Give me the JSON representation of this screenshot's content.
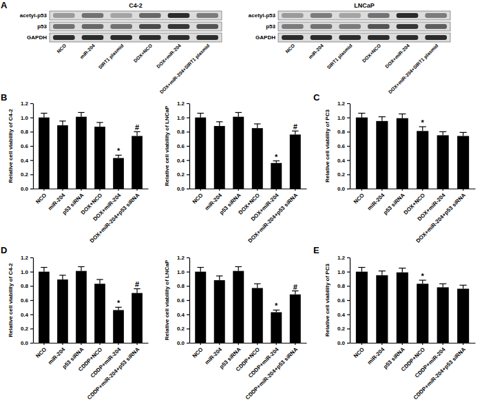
{
  "panel_labels": [
    "A",
    "B",
    "C",
    "D",
    "E"
  ],
  "blots": [
    {
      "title": "C4-2",
      "row_labels": [
        "acetyl-p53",
        "p53",
        "GAPDH"
      ],
      "lanes": [
        "NCO",
        "miR-204",
        "SIRT1 plasmid",
        "DOX+NCO",
        "DOX+miR-204",
        "DOX+miR-204+SIRT1 plasmid"
      ],
      "intensity": [
        [
          0.3,
          0.5,
          0.25,
          0.55,
          0.85,
          0.45
        ],
        [
          0.5,
          0.55,
          0.5,
          0.7,
          0.8,
          0.65
        ],
        [
          0.85,
          0.85,
          0.85,
          0.85,
          0.85,
          0.85
        ]
      ]
    },
    {
      "title": "LNCaP",
      "row_labels": [
        "acetyl-p53",
        "p53",
        "GAPDH"
      ],
      "lanes": [
        "NCO",
        "miR-204",
        "SIRT1 plasmid",
        "DOX+NCO",
        "DOX+miR-204",
        "DOX+miR-204+SIRT1 plasmid"
      ],
      "intensity": [
        [
          0.3,
          0.45,
          0.25,
          0.5,
          0.85,
          0.45
        ],
        [
          0.45,
          0.5,
          0.45,
          0.65,
          0.8,
          0.6
        ],
        [
          0.85,
          0.85,
          0.85,
          0.85,
          0.85,
          0.85
        ]
      ]
    }
  ],
  "chart_data": [
    {
      "type": "bar",
      "y_label": "Relative cell viability of C4-2",
      "categories": [
        "NCO",
        "miR-204",
        "p53 siRNA",
        "DOX+NCO",
        "DOX+miR-204",
        "DOX+miR-204+p53 siRNA"
      ],
      "values": [
        1.0,
        0.89,
        1.01,
        0.87,
        0.43,
        0.74
      ],
      "errors": [
        0.06,
        0.06,
        0.06,
        0.06,
        0.04,
        0.06
      ],
      "annotations": [
        null,
        null,
        null,
        null,
        "*",
        "#"
      ],
      "color": "#000000",
      "ylim": [
        0,
        1.2
      ],
      "yticks": [
        {
          "value": 0,
          "label": "0.0"
        },
        {
          "value": 0.2,
          "label": "0.2"
        },
        {
          "value": 0.4,
          "label": "0.4"
        },
        {
          "value": 0.6,
          "label": "0.6"
        },
        {
          "value": 0.8,
          "label": "0.8"
        },
        {
          "value": 1,
          "label": "1.0"
        },
        {
          "value": 1.2,
          "label": "1.2"
        }
      ]
    },
    {
      "type": "bar",
      "y_label": "Relative cell viability of LNCaP",
      "categories": [
        "NCO",
        "miR-204",
        "p53 siRNA",
        "DOX+NCO",
        "DOX+miR-204",
        "DOX+miR-204+p53 siRNA"
      ],
      "values": [
        1.0,
        0.88,
        1.01,
        0.85,
        0.36,
        0.76
      ],
      "errors": [
        0.06,
        0.06,
        0.06,
        0.06,
        0.03,
        0.05
      ],
      "annotations": [
        null,
        null,
        null,
        null,
        "*",
        "#"
      ],
      "color": "#000000",
      "ylim": [
        0,
        1.2
      ],
      "yticks": [
        {
          "value": 0,
          "label": "0.0"
        },
        {
          "value": 0.2,
          "label": "0.2"
        },
        {
          "value": 0.4,
          "label": "0.4"
        },
        {
          "value": 0.6,
          "label": "0.6"
        },
        {
          "value": 0.8,
          "label": "0.8"
        },
        {
          "value": 1,
          "label": "1.0"
        },
        {
          "value": 1.2,
          "label": "1.2"
        }
      ]
    },
    {
      "type": "bar",
      "y_label": "Relative cell viability of PC3",
      "categories": [
        "NCO",
        "miR-204",
        "p53 siRNA",
        "DOX+NCO",
        "DOX+miR-204",
        "DOX+miR-204+p53 siRNA"
      ],
      "values": [
        1.0,
        0.95,
        0.99,
        0.81,
        0.75,
        0.74
      ],
      "errors": [
        0.06,
        0.06,
        0.06,
        0.06,
        0.05,
        0.05
      ],
      "annotations": [
        null,
        null,
        null,
        "*",
        null,
        null
      ],
      "color": "#000000",
      "ylim": [
        0,
        1.2
      ],
      "yticks": [
        {
          "value": 0,
          "label": "0.0"
        },
        {
          "value": 0.2,
          "label": "0.2"
        },
        {
          "value": 0.4,
          "label": "0.4"
        },
        {
          "value": 0.6,
          "label": "0.6"
        },
        {
          "value": 0.8,
          "label": "0.8"
        },
        {
          "value": 1,
          "label": "1.0"
        },
        {
          "value": 1.2,
          "label": "1.2"
        }
      ]
    },
    {
      "type": "bar",
      "y_label": "Relative cell viability of C4-2",
      "categories": [
        "NCO",
        "miR-204",
        "p53 siRNA",
        "CDDP+NCO",
        "CDDP+miR-204",
        "CDDP+miR-204+p53 siRNA"
      ],
      "values": [
        1.0,
        0.89,
        1.01,
        0.83,
        0.46,
        0.7
      ],
      "errors": [
        0.06,
        0.06,
        0.06,
        0.06,
        0.04,
        0.06
      ],
      "annotations": [
        null,
        null,
        null,
        null,
        "*",
        "#"
      ],
      "color": "#000000",
      "ylim": [
        0,
        1.2
      ],
      "yticks": [
        {
          "value": 0,
          "label": "0.0"
        },
        {
          "value": 0.2,
          "label": "0.2"
        },
        {
          "value": 0.4,
          "label": "0.4"
        },
        {
          "value": 0.6,
          "label": "0.6"
        },
        {
          "value": 0.8,
          "label": "0.8"
        },
        {
          "value": 1,
          "label": "1.0"
        },
        {
          "value": 1.2,
          "label": "1.2"
        }
      ]
    },
    {
      "type": "bar",
      "y_label": "Relative cell viability of LNCaP",
      "categories": [
        "NCO",
        "miR-204",
        "p53 siRNA",
        "CDDP+NCO",
        "CDDP+miR-204",
        "CDDP+miR-204+p53 siRNA"
      ],
      "values": [
        1.0,
        0.88,
        1.01,
        0.77,
        0.43,
        0.68
      ],
      "errors": [
        0.06,
        0.06,
        0.06,
        0.06,
        0.03,
        0.05
      ],
      "annotations": [
        null,
        null,
        null,
        null,
        "*",
        "#"
      ],
      "color": "#000000",
      "ylim": [
        0,
        1.2
      ],
      "yticks": [
        {
          "value": 0,
          "label": "0.0"
        },
        {
          "value": 0.2,
          "label": "0.2"
        },
        {
          "value": 0.4,
          "label": "0.4"
        },
        {
          "value": 0.6,
          "label": "0.6"
        },
        {
          "value": 0.8,
          "label": "0.8"
        },
        {
          "value": 1,
          "label": "1.0"
        },
        {
          "value": 1.2,
          "label": "1.2"
        }
      ]
    },
    {
      "type": "bar",
      "y_label": "Relative cell viability of PC3",
      "categories": [
        "NCO",
        "miR-204",
        "p53 siRNA",
        "CDDP+NCO",
        "CDDP+miR-204",
        "CDDP+miR-204+p53 siRNA"
      ],
      "values": [
        1.0,
        0.95,
        0.99,
        0.83,
        0.78,
        0.76
      ],
      "errors": [
        0.06,
        0.06,
        0.06,
        0.05,
        0.05,
        0.05
      ],
      "annotations": [
        null,
        null,
        null,
        "*",
        null,
        null
      ],
      "color": "#000000",
      "ylim": [
        0,
        1.2
      ],
      "yticks": [
        {
          "value": 0,
          "label": "0.0"
        },
        {
          "value": 0.2,
          "label": "0.2"
        },
        {
          "value": 0.4,
          "label": "0.4"
        },
        {
          "value": 0.6,
          "label": "0.6"
        },
        {
          "value": 0.8,
          "label": "0.8"
        },
        {
          "value": 1,
          "label": "1.0"
        },
        {
          "value": 1.2,
          "label": "1.2"
        }
      ]
    }
  ]
}
